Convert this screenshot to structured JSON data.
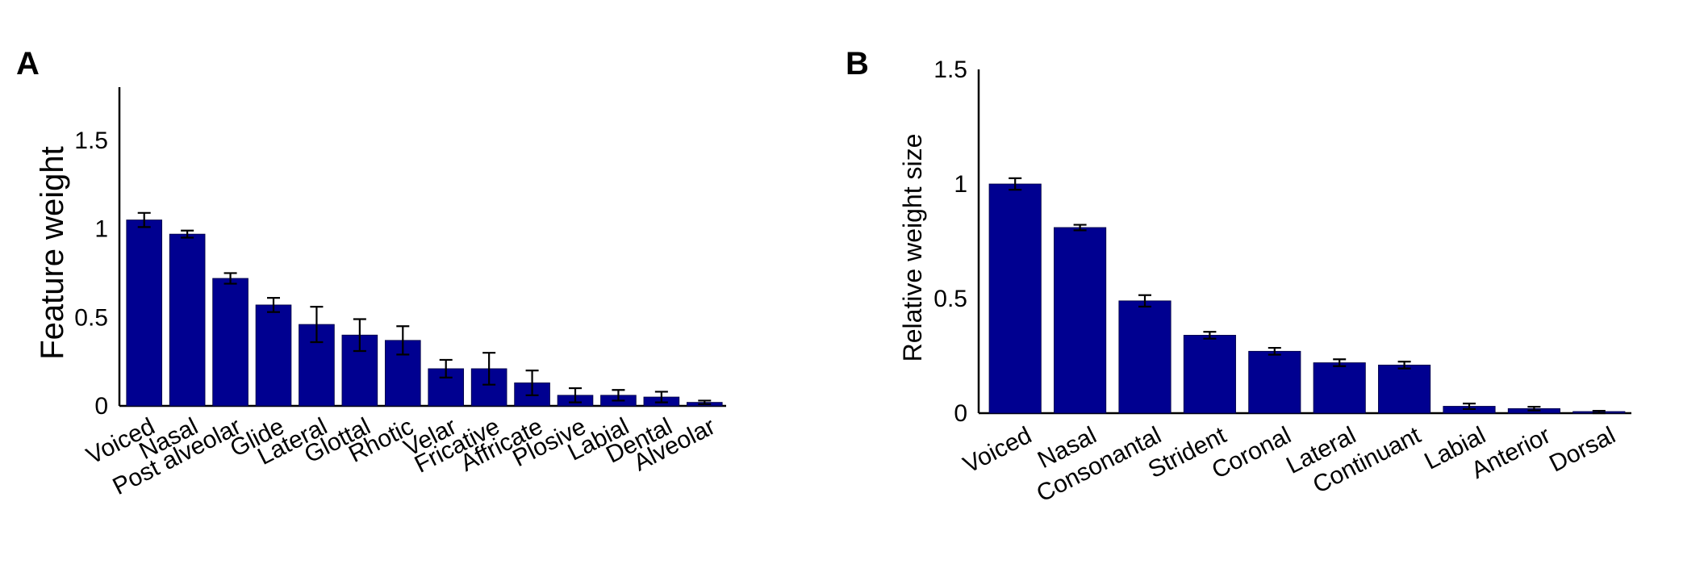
{
  "chart_data": [
    {
      "panel": "A",
      "type": "bar",
      "ylabel": "Feature weight",
      "ylim": [
        0,
        1.8
      ],
      "yticks": [
        "0",
        "0.5",
        "1",
        "1.5"
      ],
      "yticks_values": [
        0,
        0.5,
        1,
        1.5
      ],
      "categories": [
        "Voiced",
        "Nasal",
        "Post alveolar",
        "Glide",
        "Lateral",
        "Glottal",
        "Rhotic",
        "Velar",
        "Fricative",
        "Affricate",
        "Plosive",
        "Labial",
        "Dental",
        "Alveolar"
      ],
      "values": [
        1.05,
        0.97,
        0.72,
        0.57,
        0.46,
        0.4,
        0.37,
        0.21,
        0.21,
        0.13,
        0.06,
        0.06,
        0.05,
        0.02
      ],
      "errors": [
        0.04,
        0.02,
        0.03,
        0.04,
        0.1,
        0.09,
        0.08,
        0.05,
        0.09,
        0.07,
        0.04,
        0.03,
        0.03,
        0.01
      ],
      "color": "#000090"
    },
    {
      "panel": "B",
      "type": "bar",
      "ylabel": "Relative weight size",
      "ylim": [
        0,
        1.5
      ],
      "yticks": [
        "0",
        "0.5",
        "1",
        "1.5"
      ],
      "yticks_values": [
        0,
        0.5,
        1,
        1.5
      ],
      "categories": [
        "Voiced",
        "Nasal",
        "Consonantal",
        "Strident",
        "Coronal",
        "Lateral",
        "Continuant",
        "Labial",
        "Anterior",
        "Dorsal"
      ],
      "values": [
        1.0,
        0.81,
        0.49,
        0.34,
        0.27,
        0.22,
        0.21,
        0.03,
        0.02,
        0.005
      ],
      "errors": [
        0.025,
        0.012,
        0.025,
        0.015,
        0.015,
        0.015,
        0.015,
        0.012,
        0.008,
        0.005
      ],
      "color": "#000090"
    }
  ]
}
